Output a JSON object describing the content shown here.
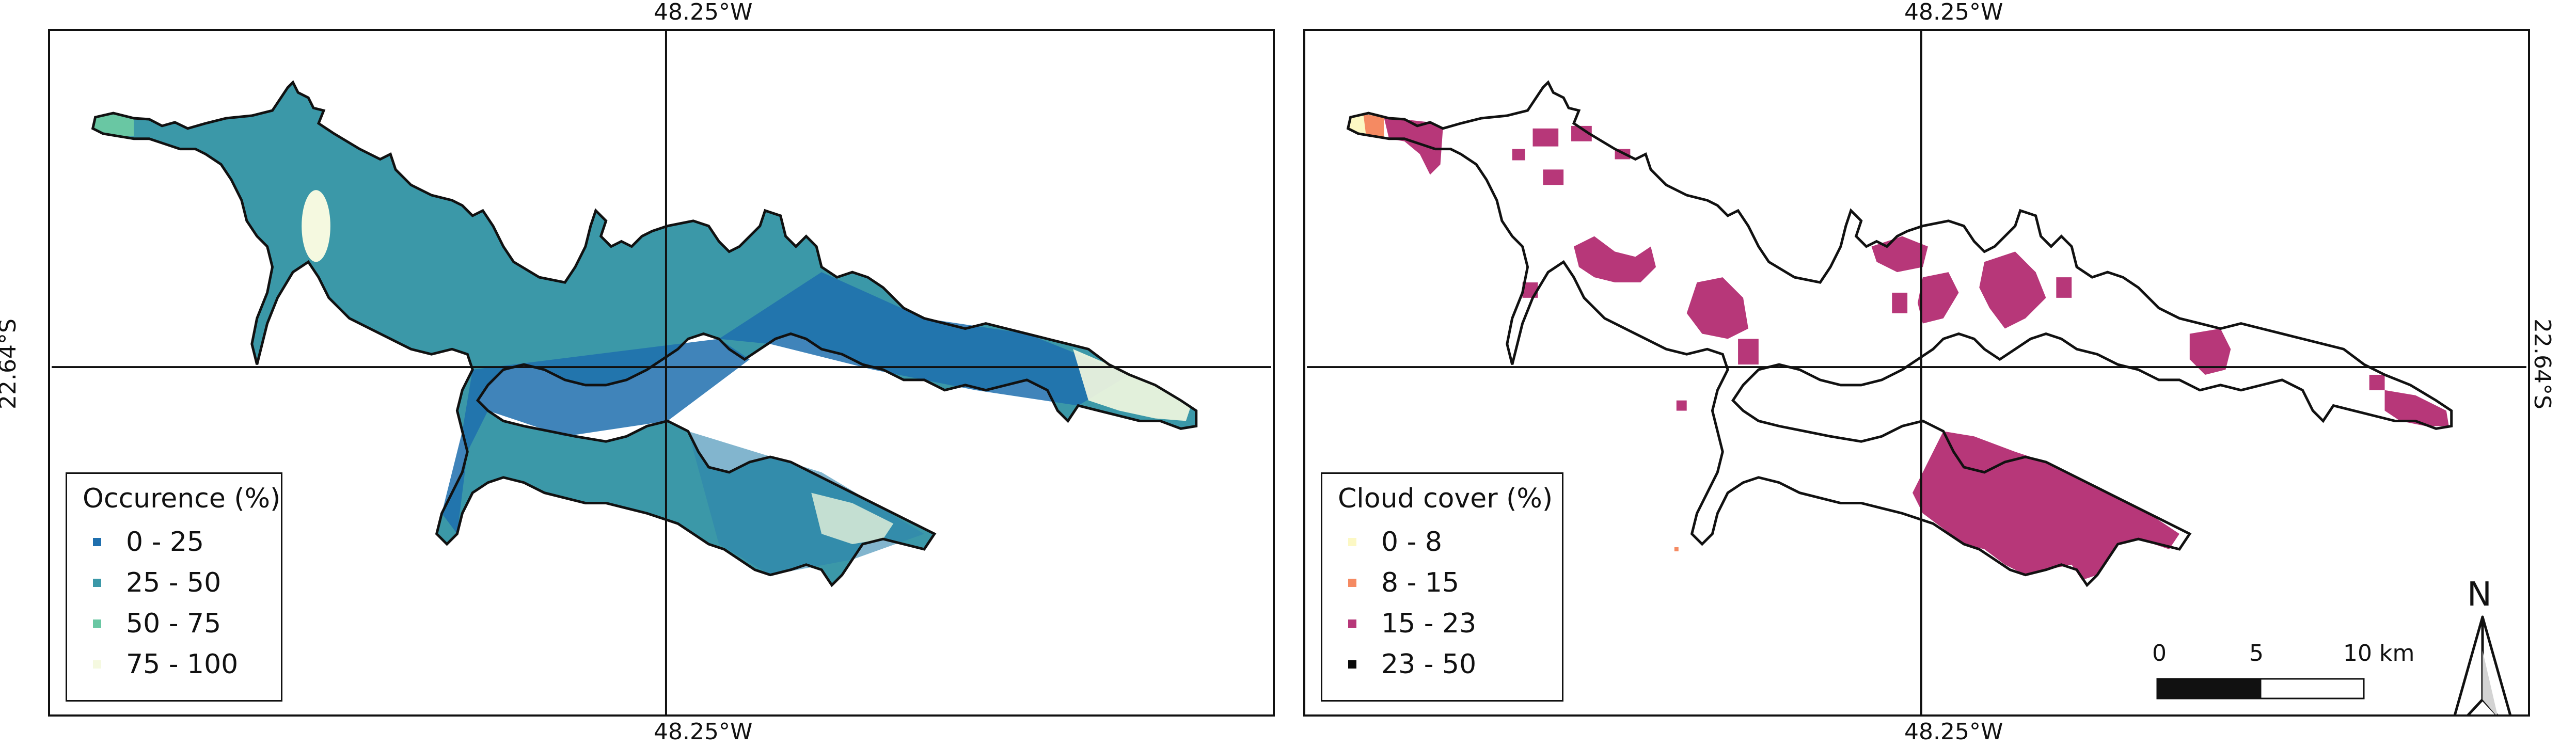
{
  "coordinates": {
    "longitude_label": "48.25°W",
    "latitude_label": "22.64°S"
  },
  "panels": [
    {
      "legend": {
        "title": "Occurence (%)",
        "items": [
          {
            "label": "0 - 25",
            "color": "#1f6fae"
          },
          {
            "label": "25 - 50",
            "color": "#3b98a8"
          },
          {
            "label": "50 - 75",
            "color": "#69c7a3"
          },
          {
            "label": "75 - 100",
            "color": "#f5f9e0"
          }
        ]
      }
    },
    {
      "legend": {
        "title": "Cloud cover (%)",
        "items": [
          {
            "label": "0 - 8",
            "color": "#fcf8c4"
          },
          {
            "label": "8 - 15",
            "color": "#f58a62"
          },
          {
            "label": "15 - 23",
            "color": "#b73779"
          },
          {
            "label": "23 - 50",
            "color": "#0a0a0a"
          }
        ]
      },
      "scalebar": {
        "labels": [
          "0",
          "5",
          "10 km"
        ]
      },
      "north_arrow": {
        "label": "N"
      }
    }
  ]
}
